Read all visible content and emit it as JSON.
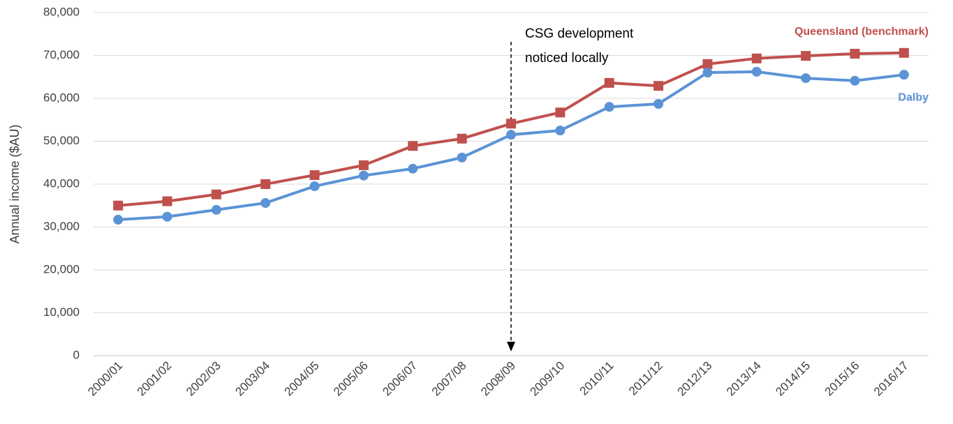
{
  "chart_data": {
    "type": "line",
    "y_label": "Annual income ($AU)",
    "categories": [
      "2000/01",
      "2001/02",
      "2002/03",
      "2003/04",
      "2004/05",
      "2005/06",
      "2006/07",
      "2007/08",
      "2008/09",
      "2009/10",
      "2010/11",
      "2011/12",
      "2012/13",
      "2013/14",
      "2014/15",
      "2015/16",
      "2016/17"
    ],
    "series": [
      {
        "name": "Queensland (benchmark)",
        "color": "#c0504d",
        "marker": "square",
        "values": [
          35000,
          36000,
          37600,
          40000,
          42100,
          44400,
          48900,
          50600,
          54100,
          56700,
          63600,
          62900,
          68000,
          69300,
          69900,
          70400,
          70600
        ]
      },
      {
        "name": "Dalby",
        "color": "#5b93d6",
        "marker": "circle",
        "values": [
          31700,
          32400,
          34000,
          35600,
          39500,
          42000,
          43600,
          46200,
          51500,
          52500,
          58000,
          58700,
          66000,
          66200,
          64700,
          64100,
          65500
        ]
      }
    ],
    "ylim": [
      0,
      80000
    ],
    "yticks": [
      0,
      {
        "value": 10000,
        "label": "10,000"
      },
      {
        "value": 20000,
        "label": "20,000"
      },
      {
        "value": 30000,
        "label": "30,000"
      },
      {
        "value": 40000,
        "label": "40,000"
      },
      {
        "value": 50000,
        "label": "50,000"
      },
      {
        "value": 60000,
        "label": "60,000"
      },
      {
        "value": 70000,
        "label": "70,000"
      },
      {
        "value": 80000,
        "label": "80,000"
      }
    ],
    "grid": true,
    "annotation": {
      "text": [
        "CSG development",
        "noticed locally"
      ],
      "x": "2008/09"
    }
  }
}
